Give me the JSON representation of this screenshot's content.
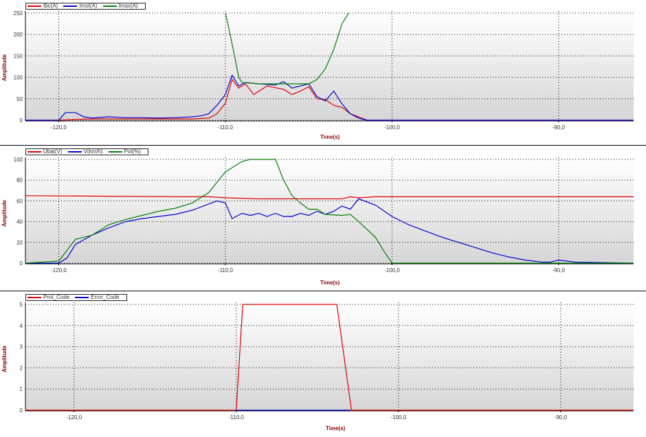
{
  "chart_data": [
    {
      "type": "line",
      "xlabel": "Time(s)",
      "ylabel": "Amplitude",
      "xlim": [
        -122.0,
        -85.5
      ],
      "ylim": [
        0,
        250
      ],
      "xticks": [
        "-120,0",
        "-110,0",
        "-100,0",
        "-90,0"
      ],
      "xtick_values": [
        -120,
        -110,
        -100,
        -90
      ],
      "yticks": [
        "0",
        "50",
        "100",
        "150",
        "200",
        "250"
      ],
      "ytick_values": [
        0,
        50,
        100,
        150,
        200,
        250
      ],
      "grid": true,
      "legend_position": "top-left",
      "series": [
        {
          "name": "Ibc(A)",
          "color": "#e00000",
          "x": [
            -122.0,
            -120.0,
            -119.0,
            -118.0,
            -117.0,
            -116.0,
            -115.0,
            -114.0,
            -113.0,
            -112.0,
            -111.0,
            -110.5,
            -110.0,
            -109.6,
            -109.2,
            -108.8,
            -108.3,
            -107.5,
            -106.5,
            -106.0,
            -105.5,
            -105.0,
            -104.5,
            -104.0,
            -103.5,
            -103.0,
            -102.5,
            -102.0,
            -101.5,
            -85.5
          ],
          "y": [
            0,
            0,
            2,
            3,
            3,
            3,
            3,
            3,
            3,
            3,
            5,
            15,
            40,
            95,
            75,
            85,
            60,
            80,
            72,
            60,
            68,
            78,
            50,
            48,
            35,
            30,
            15,
            8,
            0,
            0
          ]
        },
        {
          "name": "Imot(A)",
          "color": "#0000d0",
          "x": [
            -122.0,
            -120.0,
            -119.6,
            -119.0,
            -118.5,
            -118.0,
            -117.0,
            -116.0,
            -115.0,
            -114.0,
            -113.0,
            -112.0,
            -111.5,
            -111.0,
            -110.5,
            -110.0,
            -109.6,
            -109.2,
            -108.8,
            -108.0,
            -107.0,
            -106.5,
            -106.0,
            -105.5,
            -105.0,
            -104.5,
            -104.0,
            -103.5,
            -103.0,
            -102.5,
            -102.0,
            -101.5,
            -85.5
          ],
          "y": [
            0,
            0,
            18,
            18,
            8,
            5,
            8,
            6,
            6,
            5,
            6,
            8,
            10,
            15,
            35,
            60,
            105,
            80,
            88,
            85,
            82,
            90,
            75,
            80,
            85,
            55,
            45,
            68,
            38,
            15,
            5,
            0,
            0
          ]
        },
        {
          "name": "Imax(A)",
          "color": "#008000",
          "x": [
            -110.0,
            -109.8,
            -109.5,
            -109.2,
            -109.0,
            -108.0,
            -107.0,
            -106.0,
            -105.5,
            -105.0,
            -104.5,
            -104.0,
            -103.5,
            -103.0,
            -102.6
          ],
          "y": [
            250,
            215,
            160,
            100,
            88,
            85,
            85,
            85,
            85,
            85,
            95,
            120,
            165,
            225,
            250
          ]
        }
      ]
    },
    {
      "type": "line",
      "xlabel": "Time(s)",
      "ylabel": "Amplitude",
      "xlim": [
        -122.0,
        -85.5
      ],
      "ylim": [
        0,
        100
      ],
      "xticks": [
        "-120,0",
        "-110,0",
        "-100,0",
        "-90,0"
      ],
      "xtick_values": [
        -120,
        -110,
        -100,
        -90
      ],
      "yticks": [
        "0",
        "20",
        "40",
        "60",
        "80",
        "100"
      ],
      "ytick_values": [
        0,
        20,
        40,
        60,
        80,
        100
      ],
      "grid": true,
      "legend_position": "top-left",
      "series": [
        {
          "name": "Ubat(V)",
          "color": "#e00000",
          "x": [
            -122.0,
            -112.0,
            -111.0,
            -110.0,
            -108.0,
            -106.0,
            -104.0,
            -103.0,
            -102.5,
            -102.0,
            -101.0,
            -100.0,
            -95.0,
            -90.0,
            -85.5
          ],
          "y": [
            65,
            64,
            64,
            63,
            62,
            62,
            62,
            62,
            64,
            63,
            64,
            64,
            64,
            64,
            64
          ]
        },
        {
          "name": "V(km/h)",
          "color": "#0000d0",
          "x": [
            -122.0,
            -120.0,
            -119.5,
            -119.0,
            -118.0,
            -117.0,
            -116.0,
            -115.0,
            -114.0,
            -113.0,
            -112.0,
            -111.5,
            -111.0,
            -110.5,
            -110.0,
            -109.6,
            -109.0,
            -108.5,
            -108.0,
            -107.5,
            -107.0,
            -106.5,
            -106.0,
            -105.5,
            -105.0,
            -104.5,
            -104.0,
            -103.5,
            -103.0,
            -102.5,
            -102.0,
            -101.0,
            -100.0,
            -99.0,
            -98.0,
            -97.0,
            -96.0,
            -95.0,
            -94.0,
            -93.0,
            -92.0,
            -91.0,
            -90.5,
            -90.0,
            -89.5,
            -89.0,
            -85.5
          ],
          "y": [
            0,
            0,
            5,
            18,
            27,
            34,
            40,
            43,
            45,
            47,
            51,
            54,
            57,
            60,
            58,
            43,
            48,
            46,
            48,
            45,
            48,
            45,
            45,
            48,
            46,
            50,
            47,
            50,
            55,
            52,
            62,
            56,
            45,
            37,
            31,
            25,
            20,
            15,
            10,
            6,
            3,
            1,
            1,
            3,
            2,
            1,
            0
          ]
        },
        {
          "name": "Pot(%)",
          "color": "#008000",
          "x": [
            -122.0,
            -120.0,
            -119.0,
            -118.0,
            -117.0,
            -116.0,
            -115.0,
            -114.0,
            -113.0,
            -112.0,
            -111.0,
            -110.0,
            -109.0,
            -108.5,
            -108.0,
            -107.0,
            -106.5,
            -106.0,
            -105.5,
            -105.0,
            -104.5,
            -104.0,
            -103.0,
            -102.5,
            -102.0,
            -101.0,
            -100.5,
            -100.0,
            -85.5
          ],
          "y": [
            0,
            2,
            23,
            27,
            37,
            42,
            46,
            50,
            53,
            58,
            68,
            88,
            98,
            100,
            100,
            100,
            80,
            65,
            58,
            52,
            52,
            47,
            46,
            47,
            40,
            25,
            12,
            0,
            0
          ]
        }
      ]
    },
    {
      "type": "line",
      "xlabel": "Time(s)",
      "ylabel": "Amplitude",
      "xlim": [
        -123.0,
        -85.5
      ],
      "ylim": [
        0,
        5
      ],
      "xticks": [
        "-120,0",
        "-110,0",
        "-100,0",
        "-90,0"
      ],
      "xtick_values": [
        -120,
        -110,
        -100,
        -90
      ],
      "yticks": [
        "0",
        "1",
        "2",
        "3",
        "4",
        "5"
      ],
      "ytick_values": [
        0,
        1,
        2,
        3,
        4,
        5
      ],
      "grid": true,
      "legend_position": "top-left",
      "series": [
        {
          "name": "Prot_Code",
          "color": "#e00000",
          "x": [
            -123.0,
            -110.0,
            -109.6,
            -103.8,
            -102.9,
            -85.5
          ],
          "y": [
            0,
            0,
            5,
            5,
            0,
            0
          ]
        },
        {
          "name": "Error_Code",
          "color": "#0000d0",
          "x": [
            -110.0,
            -103.0
          ],
          "y": [
            0,
            0
          ]
        }
      ]
    }
  ]
}
